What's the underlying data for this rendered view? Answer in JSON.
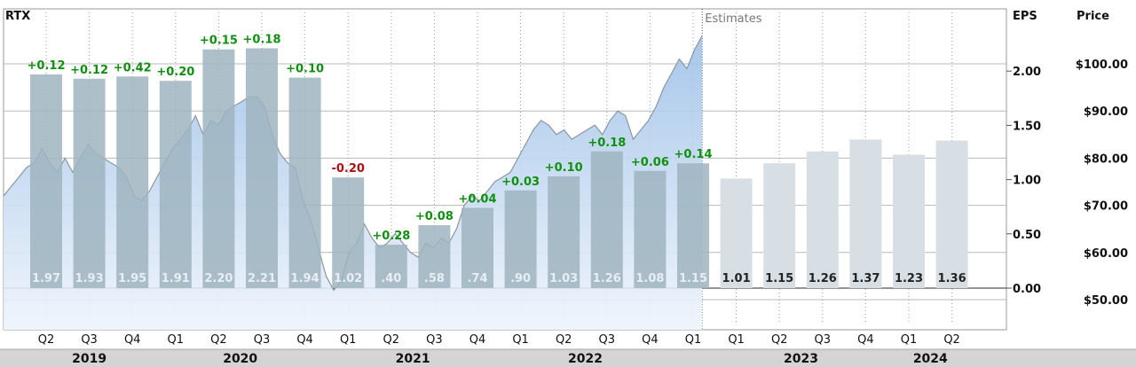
{
  "chart_data": {
    "type": "bar",
    "ticker": "RTX",
    "estimates_label": "Estimates",
    "left_axis_label": "EPS",
    "right_axis_label": "Price",
    "eps_ticks": [
      "0.00",
      "0.50",
      "1.00",
      "1.50",
      "2.00"
    ],
    "eps_tick_values": [
      0,
      0.5,
      1.0,
      1.5,
      2.0
    ],
    "price_ticks": [
      "$50.00",
      "$60.00",
      "$70.00",
      "$80.00",
      "$90.00",
      "$100.00"
    ],
    "price_tick_values": [
      50,
      60,
      70,
      80,
      90,
      100
    ],
    "ylim_eps": [
      -0.25,
      2.35
    ],
    "ylim_price": [
      47,
      107
    ],
    "categories": [
      "Q2",
      "Q3",
      "Q4",
      "Q1",
      "Q2",
      "Q3",
      "Q4",
      "Q1",
      "Q2",
      "Q3",
      "Q4",
      "Q1",
      "Q2",
      "Q3",
      "Q4",
      "Q1",
      "Q1",
      "Q2",
      "Q3",
      "Q4",
      "Q1",
      "Q2"
    ],
    "years": [
      {
        "label": "2019",
        "from": 0,
        "to": 2
      },
      {
        "label": "2020",
        "from": 3,
        "to": 6
      },
      {
        "label": "2021",
        "from": 7,
        "to": 10
      },
      {
        "label": "2022",
        "from": 11,
        "to": 14
      },
      {
        "label": "2023",
        "from": 16,
        "to": 19
      },
      {
        "label": "2024",
        "from": 20,
        "to": 21
      }
    ],
    "actual_count": 16,
    "series": [
      {
        "name": "EPS",
        "values": [
          1.97,
          1.93,
          1.95,
          1.91,
          2.2,
          2.21,
          1.94,
          1.02,
          0.4,
          0.58,
          0.74,
          0.9,
          1.03,
          1.26,
          1.08,
          1.15,
          1.01,
          1.15,
          1.26,
          1.37,
          1.23,
          1.36
        ],
        "labels": [
          "1.97",
          "1.93",
          "1.95",
          "1.91",
          "2.20",
          "2.21",
          "1.94",
          "1.02",
          ".40",
          ".58",
          ".74",
          ".90",
          "1.03",
          "1.26",
          "1.08",
          "1.15",
          "1.01",
          "1.15",
          "1.26",
          "1.37",
          "1.23",
          "1.36"
        ]
      }
    ],
    "surprises": [
      {
        "index": 0,
        "text": "+0.12"
      },
      {
        "index": 1,
        "text": "+0.12"
      },
      {
        "index": 2,
        "text": "+0.42"
      },
      {
        "index": 3,
        "text": "+0.20"
      },
      {
        "index": 4,
        "text": "+0.15"
      },
      {
        "index": 5,
        "text": "+0.18"
      },
      {
        "index": 6,
        "text": "+0.10"
      },
      {
        "index": 7,
        "text": "-0.20"
      },
      {
        "index": 8,
        "text": "+0.28"
      },
      {
        "index": 9,
        "text": "+0.08"
      },
      {
        "index": 10,
        "text": "+0.04"
      },
      {
        "index": 11,
        "text": "+0.03"
      },
      {
        "index": 12,
        "text": "+0.10"
      },
      {
        "index": 13,
        "text": "+0.18"
      },
      {
        "index": 14,
        "text": "+0.06"
      },
      {
        "index": 15,
        "text": "+0.14"
      }
    ],
    "price_series": [
      [
        0,
        72
      ],
      [
        0.5,
        74
      ],
      [
        1,
        76
      ],
      [
        1.5,
        78
      ],
      [
        2,
        79
      ],
      [
        2.5,
        82
      ],
      [
        3,
        79
      ],
      [
        3.5,
        77
      ],
      [
        4,
        80
      ],
      [
        4.5,
        77
      ],
      [
        5,
        80
      ],
      [
        5.5,
        83
      ],
      [
        6,
        81
      ],
      [
        6.5,
        80
      ],
      [
        7,
        79
      ],
      [
        7.5,
        78
      ],
      [
        8,
        76
      ],
      [
        8.5,
        72
      ],
      [
        9,
        71
      ],
      [
        9.5,
        73
      ],
      [
        10,
        76
      ],
      [
        10.5,
        79
      ],
      [
        11,
        82
      ],
      [
        11.5,
        84
      ],
      [
        12,
        86
      ],
      [
        12.5,
        89
      ],
      [
        13,
        85
      ],
      [
        13.5,
        88
      ],
      [
        14,
        87
      ],
      [
        14.5,
        90
      ],
      [
        15,
        91
      ],
      [
        15.5,
        92
      ],
      [
        16,
        93
      ],
      [
        16.5,
        93
      ],
      [
        17,
        91
      ],
      [
        17.5,
        85
      ],
      [
        18,
        81
      ],
      [
        18.5,
        79
      ],
      [
        19,
        78
      ],
      [
        19.5,
        71
      ],
      [
        20,
        67
      ],
      [
        20.5,
        61
      ],
      [
        21,
        55
      ],
      [
        21.5,
        52
      ],
      [
        22,
        54
      ],
      [
        22.5,
        60
      ],
      [
        23,
        62
      ],
      [
        23.5,
        66
      ],
      [
        24,
        63
      ],
      [
        24.5,
        61
      ],
      [
        25,
        62
      ],
      [
        25.5,
        64
      ],
      [
        26,
        62
      ],
      [
        26.5,
        60
      ],
      [
        27,
        59
      ],
      [
        27.5,
        62
      ],
      [
        28,
        61
      ],
      [
        28.5,
        63
      ],
      [
        29,
        62
      ],
      [
        29.5,
        65
      ],
      [
        30,
        70
      ],
      [
        30.5,
        72
      ],
      [
        31,
        71
      ],
      [
        31.5,
        73
      ],
      [
        32,
        75
      ],
      [
        32.5,
        76
      ],
      [
        33,
        77
      ],
      [
        33.5,
        80
      ],
      [
        34,
        83
      ],
      [
        34.5,
        86
      ],
      [
        35,
        88
      ],
      [
        35.5,
        87
      ],
      [
        36,
        85
      ],
      [
        36.5,
        86
      ],
      [
        37,
        84
      ],
      [
        37.5,
        85
      ],
      [
        38,
        86
      ],
      [
        38.5,
        87
      ],
      [
        39,
        85
      ],
      [
        39.5,
        88
      ],
      [
        40,
        90
      ],
      [
        40.5,
        89
      ],
      [
        41,
        84
      ],
      [
        41.5,
        86
      ],
      [
        42,
        88
      ],
      [
        42.5,
        91
      ],
      [
        43,
        95
      ],
      [
        43.5,
        98
      ],
      [
        44,
        101
      ],
      [
        44.5,
        99
      ],
      [
        45,
        103
      ],
      [
        45.5,
        106
      ]
    ],
    "price_x_range": [
      0,
      45.5
    ],
    "colors": {
      "bar_actual": "#9fb4c0",
      "bar_estimate": "#d7dfe5",
      "price_fill_top": "#9ec1e8",
      "price_fill_bottom": "#eef4fb",
      "price_line": "#8a96a0",
      "positive": "#109010",
      "negative": "#b01010",
      "grid": "#b8b8b8",
      "frame": "#9a9a9a",
      "footer": "#d4d4d4"
    }
  }
}
